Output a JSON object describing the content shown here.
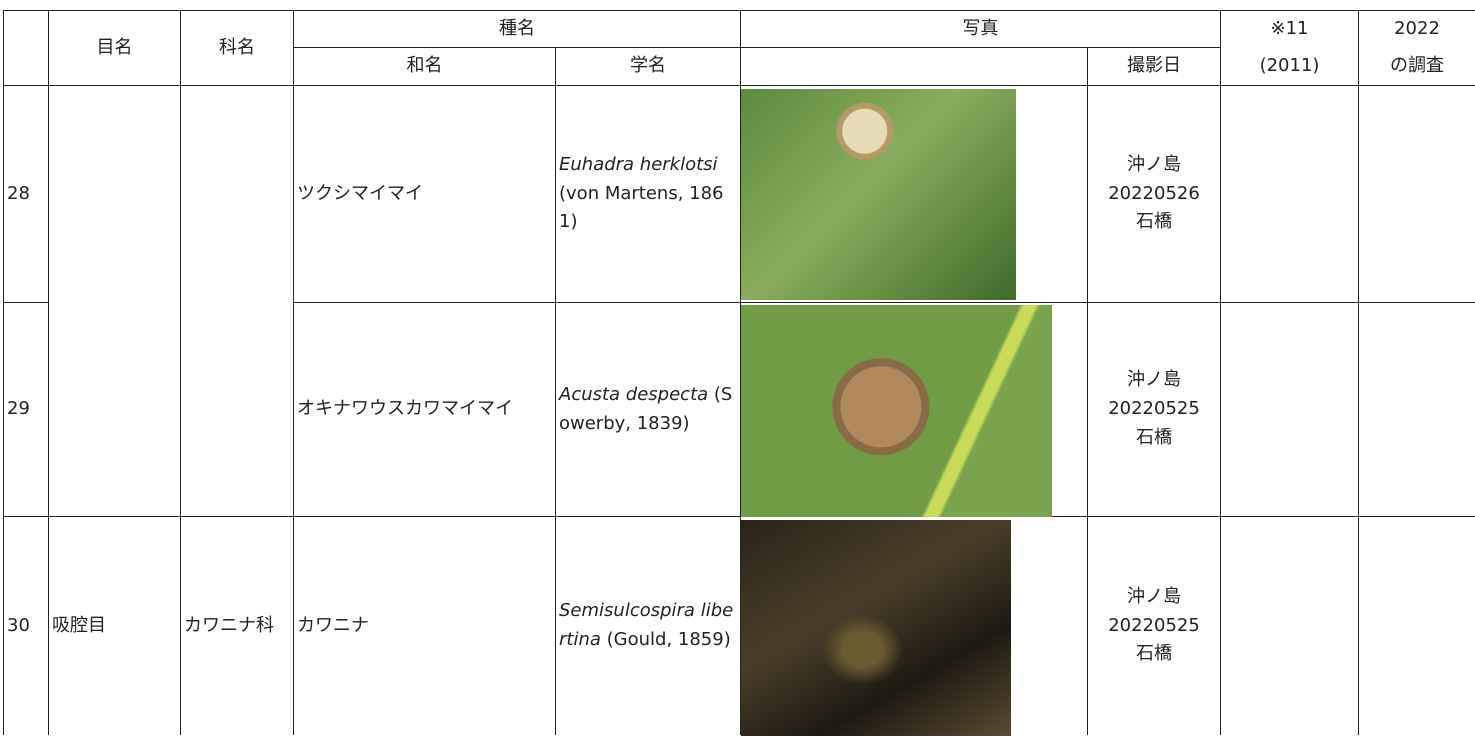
{
  "table": {
    "header": {
      "order": "目名",
      "family": "科名",
      "species": "種名",
      "japanese_name": "和名",
      "scientific_name": "学名",
      "photo": "写真",
      "photo_date": "撮影日",
      "note_top": "※11",
      "note_bottom": "(2011)",
      "survey_top": "2022",
      "survey_bottom": "の調査"
    },
    "rows": [
      {
        "no": "28",
        "japanese_name": "ツクシマイマイ",
        "scientific_name": {
          "italic": "Euhadra herklotsi",
          "plain": " (von Martens, 1861)"
        },
        "photo_date": [
          "沖ノ島",
          "20220526",
          "石橋"
        ]
      },
      {
        "no": "29",
        "japanese_name": "オキナワウスカワマイマイ",
        "scientific_name": {
          "italic": "Acusta despecta",
          "plain": " (Sowerby, 1839)"
        },
        "photo_date": [
          "沖ノ島",
          "20220525",
          "石橋"
        ]
      },
      {
        "no": "30",
        "order": "吸腔目",
        "family": "カワニナ科",
        "japanese_name": "カワニナ",
        "scientific_name": {
          "italic": "Semisulcospira libertina",
          "plain": " (Gould, 1859)"
        },
        "photo_date": [
          "沖ノ島",
          "20220525",
          "石橋"
        ]
      }
    ]
  }
}
